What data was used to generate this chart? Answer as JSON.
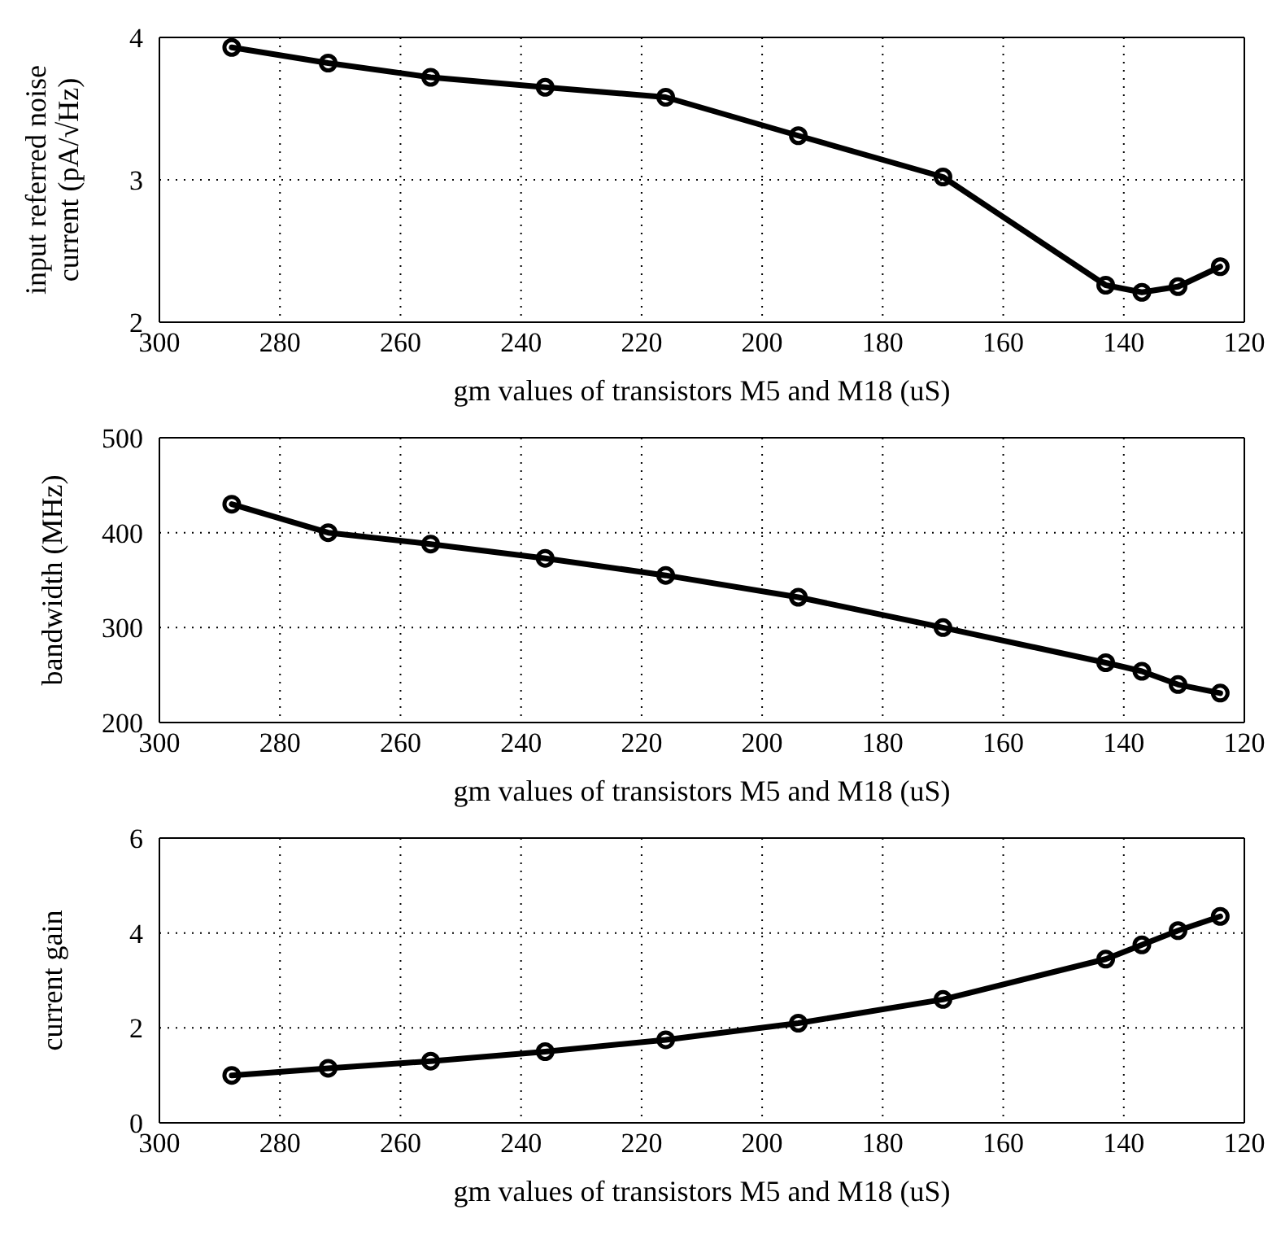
{
  "chart_data": [
    {
      "type": "line",
      "ylabel": "input referred noise current (pA/√Hz)",
      "xlabel": "gm values of transistors M5 and M18 (uS)",
      "x": [
        288,
        272,
        255,
        236,
        216,
        194,
        170,
        143,
        137,
        131,
        124
      ],
      "series": [
        {
          "color": "#000000",
          "values": [
            3.93,
            3.82,
            3.72,
            3.65,
            3.58,
            3.31,
            3.02,
            2.26,
            2.21,
            2.25,
            2.39
          ]
        }
      ],
      "xlim": [
        300,
        120
      ],
      "xticks": [
        300,
        280,
        260,
        240,
        220,
        200,
        180,
        160,
        140,
        120
      ],
      "ylim": [
        2,
        4
      ],
      "yticks": [
        2,
        3,
        4
      ],
      "grid": true,
      "marker": "circle",
      "line_style": "solid"
    },
    {
      "type": "line",
      "ylabel": "bandwidth (MHz)",
      "xlabel": "gm values of transistors M5 and M18 (uS)",
      "x": [
        288,
        272,
        255,
        236,
        216,
        194,
        170,
        143,
        137,
        131,
        124
      ],
      "series": [
        {
          "color": "#000000",
          "values": [
            430,
            400,
            388,
            373,
            355,
            332,
            300,
            263,
            254,
            240,
            231
          ]
        }
      ],
      "xlim": [
        300,
        120
      ],
      "xticks": [
        300,
        280,
        260,
        240,
        220,
        200,
        180,
        160,
        140,
        120
      ],
      "ylim": [
        200,
        500
      ],
      "yticks": [
        200,
        300,
        400,
        500
      ],
      "grid": true,
      "marker": "circle",
      "line_style": "solid"
    },
    {
      "type": "line",
      "ylabel": "current gain",
      "xlabel": "gm values of transistors M5 and M18 (uS)",
      "x": [
        288,
        272,
        255,
        236,
        216,
        194,
        170,
        143,
        137,
        131,
        124
      ],
      "series": [
        {
          "color": "#000000",
          "values": [
            1.0,
            1.15,
            1.3,
            1.5,
            1.75,
            2.1,
            2.6,
            3.45,
            3.75,
            4.05,
            4.35
          ]
        }
      ],
      "xlim": [
        300,
        120
      ],
      "xticks": [
        300,
        280,
        260,
        240,
        220,
        200,
        180,
        160,
        140,
        120
      ],
      "ylim": [
        0,
        6
      ],
      "yticks": [
        0,
        2,
        4,
        6
      ],
      "grid": true,
      "marker": "circle",
      "line_style": "solid"
    }
  ]
}
